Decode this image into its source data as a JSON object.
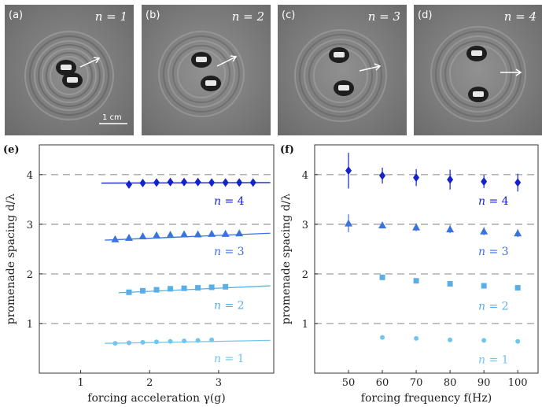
{
  "photos": [
    {
      "letter": "(a)",
      "n_label": "n = 1",
      "scale_label": "1 cm"
    },
    {
      "letter": "(b)",
      "n_label": "n = 2"
    },
    {
      "letter": "(c)",
      "n_label": "n = 3"
    },
    {
      "letter": "(d)",
      "n_label": "n = 4"
    }
  ],
  "chart_data": [
    {
      "type": "scatter",
      "panel_label": "(e)",
      "xlabel": "forcing acceleration γ(g)",
      "ylabel": "promenade spacing d/λ",
      "xlim": [
        0.4,
        3.8
      ],
      "ylim": [
        0,
        4.6
      ],
      "xticks": [
        1,
        2,
        3
      ],
      "yticks": [
        1,
        2,
        3,
        4
      ],
      "reference_lines": [
        1,
        2,
        3,
        4
      ],
      "series": [
        {
          "name": "n = 1",
          "marker": "circle",
          "color": "#6ec6f0",
          "fit_x": [
            1.35,
            3.75
          ],
          "fit_y": [
            0.6,
            0.66
          ],
          "x": [
            1.5,
            1.7,
            1.9,
            2.1,
            2.3,
            2.5,
            2.7,
            2.9
          ],
          "y": [
            0.6,
            0.61,
            0.62,
            0.63,
            0.64,
            0.65,
            0.66,
            0.67
          ]
        },
        {
          "name": "n = 2",
          "marker": "square",
          "color": "#5aaee8",
          "fit_x": [
            1.55,
            3.75
          ],
          "fit_y": [
            1.62,
            1.76
          ],
          "x": [
            1.7,
            1.9,
            2.1,
            2.3,
            2.5,
            2.7,
            2.9,
            3.1
          ],
          "y": [
            1.63,
            1.66,
            1.68,
            1.7,
            1.71,
            1.72,
            1.73,
            1.74
          ]
        },
        {
          "name": "n = 3",
          "marker": "triangle",
          "color": "#3a72e0",
          "fit_x": [
            1.35,
            3.75
          ],
          "fit_y": [
            2.68,
            2.82
          ],
          "x": [
            1.5,
            1.7,
            1.9,
            2.1,
            2.3,
            2.5,
            2.7,
            2.9,
            3.1,
            3.3
          ],
          "y": [
            2.7,
            2.73,
            2.76,
            2.78,
            2.79,
            2.8,
            2.8,
            2.81,
            2.81,
            2.82
          ]
        },
        {
          "name": "n = 4",
          "marker": "diamond",
          "color": "#1422c8",
          "fit_x": [
            1.3,
            3.75
          ],
          "fit_y": [
            3.83,
            3.84
          ],
          "x": [
            1.7,
            1.9,
            2.1,
            2.3,
            2.5,
            2.7,
            2.9,
            3.1,
            3.3,
            3.5
          ],
          "y": [
            3.8,
            3.83,
            3.84,
            3.85,
            3.85,
            3.85,
            3.84,
            3.84,
            3.84,
            3.84
          ]
        }
      ]
    },
    {
      "type": "scatter",
      "panel_label": "(f)",
      "xlabel": "forcing frequency f(Hz)",
      "ylabel": "promenade spacing d/λ",
      "xlim": [
        40,
        106
      ],
      "ylim": [
        0,
        4.6
      ],
      "xticks": [
        50,
        60,
        70,
        80,
        90,
        100
      ],
      "yticks": [
        1,
        2,
        3,
        4
      ],
      "reference_lines": [
        1,
        2,
        3,
        4
      ],
      "series": [
        {
          "name": "n = 1",
          "marker": "circle",
          "color": "#6ec6f0",
          "x": [
            60,
            70,
            80,
            90,
            100
          ],
          "y": [
            0.72,
            0.7,
            0.67,
            0.66,
            0.64
          ],
          "err": [
            0,
            0,
            0,
            0,
            0
          ]
        },
        {
          "name": "n = 2",
          "marker": "square",
          "color": "#5aaee8",
          "x": [
            60,
            70,
            80,
            90,
            100
          ],
          "y": [
            1.93,
            1.86,
            1.8,
            1.76,
            1.72
          ],
          "err": [
            0,
            0,
            0,
            0,
            0
          ]
        },
        {
          "name": "n = 3",
          "marker": "triangle",
          "color": "#3a72e0",
          "x": [
            50,
            60,
            70,
            80,
            90,
            100
          ],
          "y": [
            3.02,
            2.98,
            2.94,
            2.9,
            2.86,
            2.82
          ],
          "err": [
            0.18,
            0.06,
            0.08,
            0.08,
            0.08,
            0.08
          ]
        },
        {
          "name": "n = 4",
          "marker": "diamond",
          "color": "#1422c8",
          "x": [
            50,
            60,
            70,
            80,
            90,
            100
          ],
          "y": [
            4.08,
            3.98,
            3.94,
            3.9,
            3.86,
            3.84
          ],
          "err": [
            0.36,
            0.16,
            0.17,
            0.2,
            0.13,
            0.18
          ]
        }
      ]
    }
  ]
}
